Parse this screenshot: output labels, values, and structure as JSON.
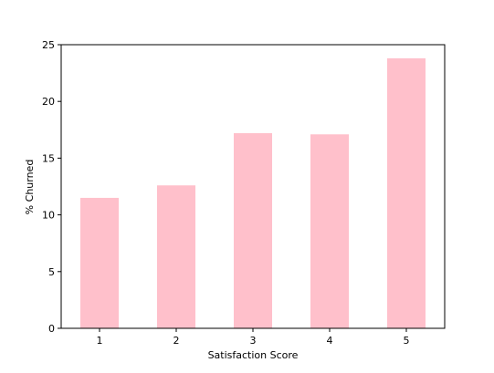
{
  "chart_data": {
    "type": "bar",
    "title": "",
    "xlabel": "Satisfaction Score",
    "ylabel": "% Churned",
    "categories": [
      "1",
      "2",
      "3",
      "4",
      "5"
    ],
    "values": [
      11.5,
      12.6,
      17.2,
      17.1,
      23.8
    ],
    "ylim": [
      0,
      25
    ],
    "yticks": [
      0,
      5,
      10,
      15,
      20,
      25
    ],
    "grid": false,
    "legend": "none",
    "bar_color": "#ffc0cb"
  }
}
